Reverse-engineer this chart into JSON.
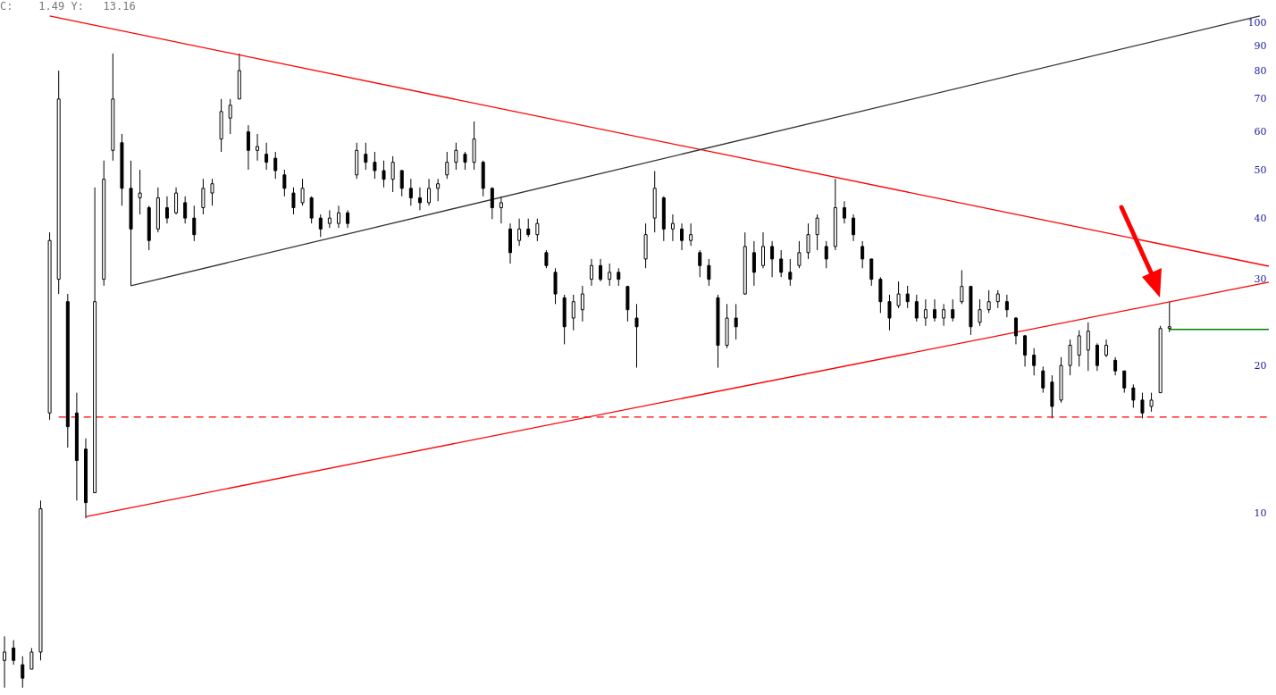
{
  "chart_data": {
    "type": "candlestick",
    "annotations": [
      "C:    1.49 Y:   13.16"
    ],
    "categories": [
      null,
      null,
      null,
      null,
      null,
      null,
      null,
      null,
      null,
      null,
      null,
      null,
      null,
      null,
      null,
      null,
      null,
      null,
      null,
      null,
      null,
      null,
      null,
      null,
      null,
      null,
      null,
      null,
      null,
      null,
      null,
      null,
      null,
      null,
      null,
      null,
      null,
      null,
      null,
      null,
      null,
      null,
      null,
      null,
      null,
      null,
      null,
      null,
      null,
      null,
      null,
      null,
      null,
      null,
      null,
      null,
      null,
      null,
      null,
      null,
      null,
      null,
      null,
      null,
      null,
      null,
      null,
      null,
      null,
      null,
      null,
      null,
      null,
      null,
      null,
      null,
      null,
      null,
      null,
      null,
      null,
      null,
      null,
      null,
      null,
      null,
      null,
      null,
      null,
      null,
      null,
      null,
      null,
      null,
      null,
      null,
      null,
      null,
      null,
      null,
      null,
      null,
      null,
      null,
      null,
      null,
      null,
      null,
      null,
      null,
      null,
      null,
      null,
      null,
      null,
      null,
      null,
      null,
      null,
      null,
      null,
      null,
      null,
      null,
      null,
      null,
      null,
      null,
      null,
      null,
      null,
      null,
      null,
      null,
      null,
      null,
      null,
      null,
      null,
      null,
      null
    ],
    "ohlc": [
      [
        5.0,
        5.6,
        4.4,
        5.2
      ],
      [
        5.3,
        5.5,
        4.9,
        5.0
      ],
      [
        4.9,
        5.1,
        4.4,
        4.6
      ],
      [
        4.8,
        5.3,
        4.8,
        5.2
      ],
      [
        5.2,
        10.6,
        5.0,
        10.2
      ],
      [
        16,
        37.4,
        15.5,
        36
      ],
      [
        30,
        80,
        28,
        70
      ],
      [
        27,
        28,
        13.6,
        15
      ],
      [
        16,
        17.6,
        10.6,
        12.8
      ],
      [
        13.5,
        14.2,
        9.75,
        10.5
      ],
      [
        11,
        46.2,
        11,
        27
      ],
      [
        30,
        52.4,
        29.1,
        48
      ],
      [
        55,
        86.7,
        52.4,
        70
      ],
      [
        57,
        59.4,
        42.4,
        46
      ],
      [
        46,
        52.4,
        29.1,
        38
      ],
      [
        44,
        50.2,
        40.7,
        45
      ],
      [
        42,
        42.4,
        34.4,
        36
      ],
      [
        38,
        46.2,
        37.4,
        44
      ],
      [
        42,
        44.3,
        39,
        40
      ],
      [
        41,
        46.2,
        40.7,
        45
      ],
      [
        43,
        44.3,
        39,
        40
      ],
      [
        40,
        42.4,
        35.9,
        37
      ],
      [
        42,
        48.1,
        40.7,
        46
      ],
      [
        45,
        48.1,
        42.4,
        47
      ],
      [
        58,
        70,
        54.6,
        66
      ],
      [
        64,
        70,
        59.4,
        68
      ],
      [
        70,
        86.7,
        70,
        80
      ],
      [
        60,
        61.9,
        50.2,
        55
      ],
      [
        55,
        59.4,
        52.4,
        56
      ],
      [
        54,
        57,
        50.2,
        52
      ],
      [
        53,
        54.6,
        48.1,
        50
      ],
      [
        49,
        50.2,
        44.3,
        46
      ],
      [
        45,
        46.2,
        40.7,
        42
      ],
      [
        43,
        48.1,
        42.4,
        46
      ],
      [
        44,
        44.3,
        39,
        40
      ],
      [
        40,
        40.7,
        36.6,
        38
      ],
      [
        39,
        41.5,
        38.2,
        40
      ],
      [
        39,
        42.4,
        38.2,
        41
      ],
      [
        41,
        41.5,
        38.2,
        39
      ],
      [
        49,
        57,
        48.1,
        55
      ],
      [
        54,
        57,
        50.2,
        52
      ],
      [
        52,
        54.6,
        48.1,
        50
      ],
      [
        50,
        52.4,
        46.2,
        48
      ],
      [
        48,
        53.5,
        45.2,
        52
      ],
      [
        50,
        50.2,
        44.3,
        46
      ],
      [
        46,
        48.1,
        42.4,
        44
      ],
      [
        44,
        46.2,
        41.5,
        43
      ],
      [
        43,
        48.1,
        42.4,
        46
      ],
      [
        46,
        48.1,
        43.3,
        47
      ],
      [
        49,
        54.6,
        48.1,
        52
      ],
      [
        52,
        57,
        50.2,
        55
      ],
      [
        54,
        54.6,
        50.2,
        52
      ],
      [
        52,
        63,
        50.2,
        58
      ],
      [
        52,
        52.4,
        44.3,
        46
      ],
      [
        46,
        46.2,
        39.8,
        42
      ],
      [
        42,
        44.3,
        39,
        43
      ],
      [
        38,
        39,
        32.3,
        34
      ],
      [
        36,
        39.9,
        35.1,
        38
      ],
      [
        38,
        39.9,
        36.6,
        37
      ],
      [
        37,
        39.9,
        35.9,
        39
      ],
      [
        34,
        34.4,
        31.6,
        32
      ],
      [
        31,
        31.6,
        26.7,
        28
      ],
      [
        27.5,
        27.9,
        22.1,
        24
      ],
      [
        25,
        27.9,
        23.6,
        27
      ],
      [
        26,
        29.1,
        24.6,
        28
      ],
      [
        30,
        33,
        29.1,
        32
      ],
      [
        32,
        33,
        29.7,
        30
      ],
      [
        30,
        32.3,
        29.1,
        31
      ],
      [
        31,
        31.6,
        29.1,
        30
      ],
      [
        29,
        29.1,
        24.6,
        26
      ],
      [
        25,
        26.7,
        19.8,
        24
      ],
      [
        33,
        39,
        31.6,
        37
      ],
      [
        40,
        49.9,
        37.4,
        46
      ],
      [
        44,
        44.3,
        35.9,
        38
      ],
      [
        38,
        40.7,
        35.9,
        39
      ],
      [
        38,
        39,
        34.4,
        36
      ],
      [
        36,
        39,
        35.1,
        37
      ],
      [
        34,
        34.4,
        30.3,
        32
      ],
      [
        32,
        33,
        29.1,
        30
      ],
      [
        27.5,
        27.9,
        19.8,
        22
      ],
      [
        22,
        26.7,
        21.7,
        25
      ],
      [
        25,
        26.7,
        22.6,
        24
      ],
      [
        28,
        37.4,
        27.9,
        35
      ],
      [
        34,
        35.9,
        29.1,
        31
      ],
      [
        32,
        37.4,
        31.6,
        35
      ],
      [
        35,
        35.9,
        30.3,
        33
      ],
      [
        33,
        34.4,
        30.3,
        31
      ],
      [
        31,
        33,
        29.1,
        30
      ],
      [
        32,
        35.9,
        31.6,
        34
      ],
      [
        34,
        39,
        33,
        37
      ],
      [
        37,
        40.7,
        34.4,
        40
      ],
      [
        35,
        35.9,
        31.6,
        33
      ],
      [
        35,
        48.1,
        34.4,
        42
      ],
      [
        42,
        43.3,
        39,
        40
      ],
      [
        40,
        40.7,
        35.9,
        37
      ],
      [
        35,
        35.9,
        31.6,
        33
      ],
      [
        33,
        33,
        29.1,
        30
      ],
      [
        30,
        30.3,
        25.6,
        27
      ],
      [
        27,
        27.9,
        23.6,
        25
      ],
      [
        26.5,
        29.7,
        26.2,
        28
      ],
      [
        28,
        29.1,
        26.2,
        27
      ],
      [
        27,
        27.9,
        24.6,
        25
      ],
      [
        25,
        27.3,
        24.1,
        26
      ],
      [
        26,
        27.3,
        24.6,
        25
      ],
      [
        25,
        26.7,
        24.1,
        26
      ],
      [
        26,
        27.3,
        24.6,
        25
      ],
      [
        27,
        31.3,
        26.7,
        29
      ],
      [
        29,
        29.1,
        23.1,
        24
      ],
      [
        24.5,
        27.3,
        24.1,
        26
      ],
      [
        26,
        28.5,
        25.6,
        27
      ],
      [
        27,
        28.5,
        26.2,
        28
      ],
      [
        27,
        27.9,
        25.1,
        26
      ],
      [
        25,
        25.1,
        22.1,
        23
      ],
      [
        23,
        23.1,
        19.9,
        21
      ],
      [
        21,
        21.7,
        19.1,
        20
      ],
      [
        19.5,
        19.9,
        17.6,
        18
      ],
      [
        18.5,
        19.1,
        15.6,
        16.5
      ],
      [
        17,
        20.8,
        16.8,
        20
      ],
      [
        20,
        22.6,
        19.1,
        22
      ],
      [
        21,
        23.6,
        19.9,
        23
      ],
      [
        21.5,
        24.5,
        19.5,
        23.5
      ],
      [
        22,
        22.2,
        19.5,
        20
      ],
      [
        21,
        22.6,
        20.8,
        22
      ],
      [
        20.5,
        20.8,
        19.1,
        19.5
      ],
      [
        19.5,
        19.5,
        17.6,
        18
      ],
      [
        18,
        18.3,
        16.4,
        17
      ],
      [
        17,
        17.6,
        15.6,
        16
      ],
      [
        16.5,
        17.6,
        16.1,
        17
      ],
      [
        17.6,
        24.1,
        17.6,
        23.8
      ],
      [
        23.8,
        27,
        23.4,
        24
      ],
      null,
      null,
      null,
      null,
      null,
      null,
      null,
      null,
      null,
      null,
      null
    ],
    "series": [
      {
        "type": "line",
        "color": "#ff0000",
        "values": [
          null,
          null,
          null,
          null,
          null,
          103.4,
          null,
          null,
          null,
          null,
          null,
          null,
          null,
          null,
          null,
          null,
          null,
          null,
          null,
          null,
          null,
          null,
          null,
          null,
          null,
          null,
          null,
          null,
          null,
          null,
          null,
          null,
          null,
          null,
          null,
          null,
          null,
          null,
          null,
          null,
          null,
          null,
          null,
          null,
          null,
          null,
          null,
          null,
          null,
          null,
          null,
          null,
          null,
          null,
          null,
          null,
          null,
          null,
          null,
          null,
          null,
          null,
          null,
          null,
          null,
          null,
          null,
          null,
          null,
          null,
          null,
          null,
          null,
          null,
          null,
          null,
          null,
          null,
          null,
          null,
          null,
          null,
          null,
          null,
          null,
          null,
          null,
          null,
          null,
          null,
          null,
          null,
          null,
          null,
          null,
          null,
          null,
          null,
          null,
          null,
          null,
          null,
          null,
          null,
          null,
          null,
          null,
          null,
          null,
          null,
          null,
          null,
          null,
          null,
          null,
          null,
          null,
          null,
          null,
          null,
          null,
          null,
          null,
          null,
          null,
          null,
          null,
          null,
          null,
          null,
          null,
          null,
          null,
          null,
          null,
          null,
          null,
          null,
          null,
          null,
          31.9
        ]
      },
      {
        "type": "line",
        "color": "#ff0000",
        "values": [
          null,
          null,
          null,
          null,
          null,
          null,
          null,
          null,
          null,
          9.83,
          null,
          null,
          null,
          null,
          null,
          null,
          null,
          null,
          null,
          null,
          null,
          null,
          null,
          null,
          null,
          null,
          null,
          null,
          null,
          null,
          null,
          null,
          null,
          null,
          null,
          null,
          null,
          null,
          null,
          null,
          null,
          null,
          null,
          null,
          null,
          null,
          null,
          null,
          null,
          null,
          null,
          null,
          null,
          null,
          null,
          null,
          null,
          null,
          null,
          null,
          null,
          null,
          null,
          null,
          null,
          null,
          null,
          null,
          null,
          null,
          null,
          null,
          null,
          null,
          null,
          null,
          null,
          null,
          null,
          null,
          null,
          null,
          null,
          null,
          null,
          null,
          null,
          null,
          null,
          null,
          null,
          null,
          null,
          null,
          null,
          null,
          null,
          null,
          null,
          null,
          null,
          null,
          null,
          null,
          null,
          null,
          null,
          null,
          null,
          null,
          null,
          null,
          null,
          null,
          null,
          null,
          null,
          null,
          null,
          null,
          null,
          null,
          null,
          null,
          null,
          null,
          null,
          null,
          null,
          null,
          null,
          null,
          null,
          null,
          null,
          null,
          null,
          null,
          null,
          null,
          29.6
        ]
      },
      {
        "type": "line",
        "color": "#333333",
        "values": [
          null,
          null,
          null,
          null,
          null,
          null,
          null,
          null,
          null,
          null,
          null,
          null,
          null,
          null,
          29.1,
          null,
          null,
          null,
          null,
          null,
          null,
          null,
          null,
          null,
          null,
          null,
          null,
          null,
          null,
          null,
          null,
          null,
          null,
          null,
          null,
          null,
          null,
          null,
          null,
          null,
          null,
          null,
          null,
          null,
          null,
          null,
          null,
          null,
          null,
          null,
          null,
          null,
          null,
          null,
          null,
          null,
          null,
          null,
          null,
          null,
          null,
          null,
          null,
          null,
          null,
          null,
          null,
          null,
          null,
          null,
          null,
          null,
          null,
          null,
          null,
          null,
          null,
          null,
          null,
          null,
          null,
          null,
          null,
          null,
          null,
          null,
          null,
          null,
          null,
          null,
          null,
          null,
          null,
          null,
          null,
          null,
          null,
          null,
          null,
          null,
          null,
          null,
          null,
          null,
          null,
          null,
          null,
          null,
          null,
          null,
          null,
          null,
          null,
          null,
          null,
          null,
          null,
          null,
          null,
          null,
          null,
          null,
          null,
          null,
          null,
          null,
          null,
          null,
          null,
          null,
          null,
          null,
          null,
          null,
          null,
          null,
          null,
          null,
          null,
          103.4,
          null
        ]
      },
      {
        "type": "line",
        "color": "#ff0000",
        "line_style": "dashed",
        "values": [
          null,
          null,
          null,
          null,
          null,
          null,
          15.7,
          null,
          null,
          null,
          null,
          null,
          null,
          null,
          null,
          null,
          null,
          null,
          null,
          null,
          null,
          null,
          null,
          null,
          null,
          null,
          null,
          null,
          null,
          null,
          null,
          null,
          null,
          null,
          null,
          null,
          null,
          null,
          null,
          null,
          null,
          null,
          null,
          null,
          null,
          null,
          null,
          null,
          null,
          null,
          null,
          null,
          null,
          null,
          null,
          null,
          null,
          null,
          null,
          null,
          null,
          null,
          null,
          null,
          null,
          null,
          null,
          null,
          null,
          null,
          null,
          null,
          null,
          null,
          null,
          null,
          null,
          null,
          null,
          null,
          null,
          null,
          null,
          null,
          null,
          null,
          null,
          null,
          null,
          null,
          null,
          null,
          null,
          null,
          null,
          null,
          null,
          null,
          null,
          null,
          null,
          null,
          null,
          null,
          null,
          null,
          null,
          null,
          null,
          null,
          null,
          null,
          null,
          null,
          null,
          null,
          null,
          null,
          null,
          null,
          null,
          null,
          null,
          null,
          null,
          null,
          null,
          null,
          null,
          null,
          null,
          null,
          null,
          null,
          null,
          null,
          null,
          null,
          null,
          null,
          15.7
        ]
      },
      {
        "type": "line",
        "color": "#008000",
        "values": [
          null,
          null,
          null,
          null,
          null,
          null,
          null,
          null,
          null,
          null,
          null,
          null,
          null,
          null,
          null,
          null,
          null,
          null,
          null,
          null,
          null,
          null,
          null,
          null,
          null,
          null,
          null,
          null,
          null,
          null,
          null,
          null,
          null,
          null,
          null,
          null,
          null,
          null,
          null,
          null,
          null,
          null,
          null,
          null,
          null,
          null,
          null,
          null,
          null,
          null,
          null,
          null,
          null,
          null,
          null,
          null,
          null,
          null,
          null,
          null,
          null,
          null,
          null,
          null,
          null,
          null,
          null,
          null,
          null,
          null,
          null,
          null,
          null,
          null,
          null,
          null,
          null,
          null,
          null,
          null,
          null,
          null,
          null,
          null,
          null,
          null,
          null,
          null,
          null,
          null,
          null,
          null,
          null,
          null,
          null,
          null,
          null,
          null,
          null,
          null,
          null,
          null,
          null,
          null,
          null,
          null,
          null,
          null,
          null,
          null,
          null,
          null,
          null,
          null,
          null,
          null,
          null,
          null,
          null,
          null,
          null,
          null,
          null,
          null,
          null,
          null,
          null,
          null,
          null,
          23.7,
          null,
          null,
          null,
          null,
          null,
          null,
          null,
          null,
          null,
          null,
          23.7
        ]
      }
    ],
    "ylim": [
      4.25,
      111.5
    ],
    "yticks": [
      10,
      20,
      30,
      40,
      50,
      60,
      70,
      80,
      90,
      100
    ],
    "log": "y",
    "grid": false
  }
}
